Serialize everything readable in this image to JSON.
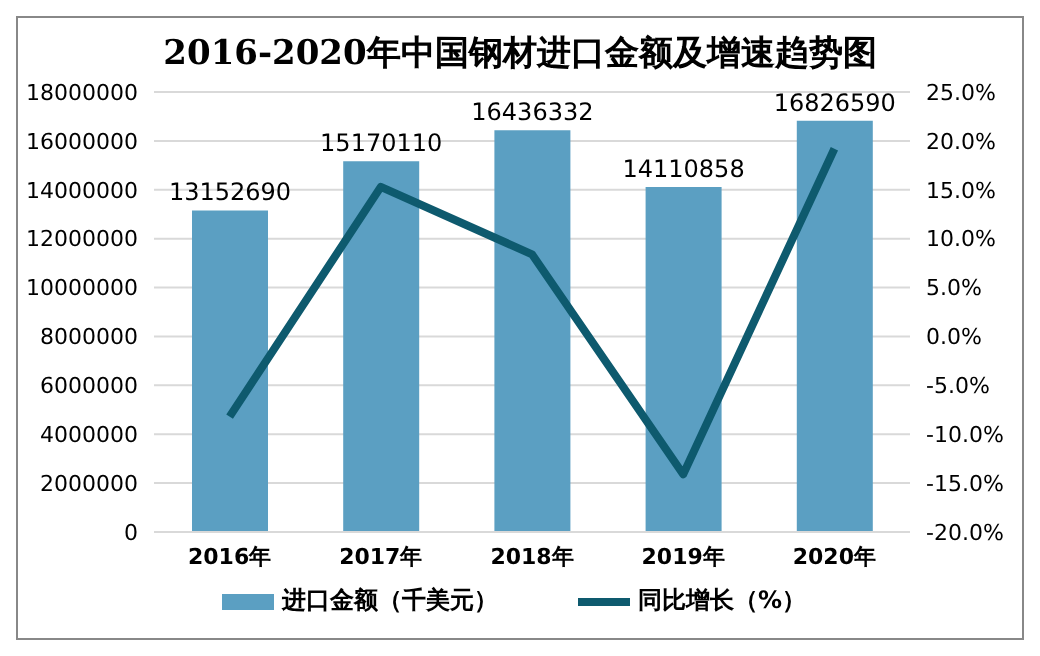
{
  "chart_data": {
    "type": "bar",
    "title": "2016-2020年中国钢材进口金额及增速趋势图",
    "categories": [
      "2016年",
      "2017年",
      "2018年",
      "2019年",
      "2020年"
    ],
    "series": [
      {
        "name": "进口金额（千美元）",
        "color": "#5b9fc2",
        "values": [
          13152690,
          15170110,
          16436332,
          14110858,
          16826590
        ],
        "data_labels": true
      },
      {
        "name": "同比增长（%）",
        "type": "line",
        "axis": "y2",
        "color": "#0e5a6e",
        "values": [
          -8.2,
          15.3,
          8.4,
          -14.1,
          19.2
        ],
        "marker": "none"
      }
    ],
    "ylim": [
      0,
      18000000
    ],
    "yticks": [
      0,
      2000000,
      4000000,
      6000000,
      8000000,
      10000000,
      12000000,
      14000000,
      16000000,
      18000000
    ],
    "y2lim": [
      -20,
      25
    ],
    "y2ticks": [
      {
        "value": -20,
        "label": "-20.0%"
      },
      {
        "value": -15,
        "label": "-15.0%"
      },
      {
        "value": -10,
        "label": "-10.0%"
      },
      {
        "value": -5,
        "label": "-5.0%"
      },
      {
        "value": 0,
        "label": "0.0%"
      },
      {
        "value": 5,
        "label": "5.0%"
      },
      {
        "value": 10,
        "label": "10.0%"
      },
      {
        "value": 15,
        "label": "15.0%"
      },
      {
        "value": 20,
        "label": "20.0%"
      },
      {
        "value": 25,
        "label": "25.0%"
      }
    ],
    "grid": "y",
    "legend": "bottom"
  }
}
